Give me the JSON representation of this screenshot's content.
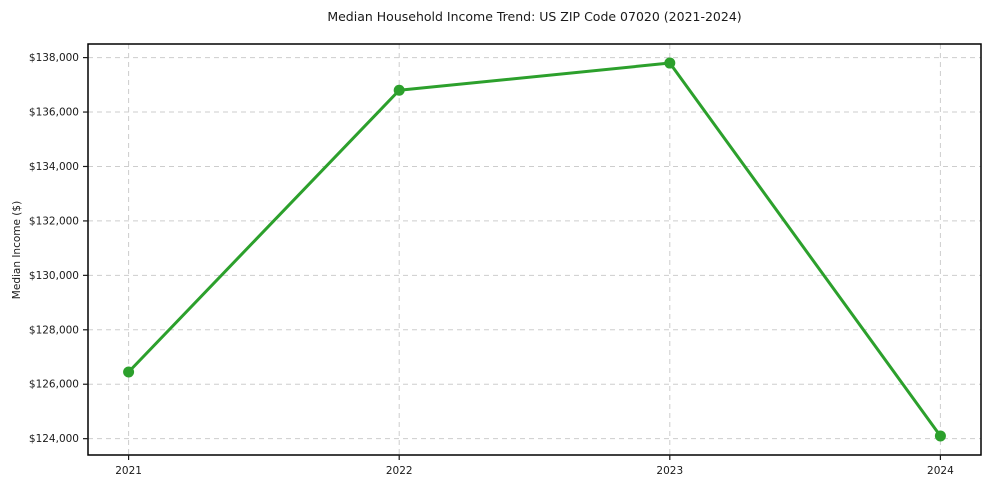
{
  "figure": {
    "title": "Median Household Income Trend: US ZIP Code 07020 (2021-2024)",
    "background_color": "#ffffff"
  },
  "chart_data": {
    "type": "line",
    "title": "Median Household Income Trend: US ZIP Code 07020 (2021-2024)",
    "xlabel": "",
    "ylabel": "Median Income ($)",
    "x": [
      2021,
      2022,
      2023,
      2024
    ],
    "series": [
      {
        "values": [
          126450,
          136800,
          137800,
          124100
        ],
        "color": "#2ca02c",
        "line_width": 3,
        "marker": "circle",
        "marker_size": 5.5
      }
    ],
    "xticks": {
      "values": [
        2021,
        2022,
        2023,
        2024
      ],
      "labels": [
        "2021",
        "2022",
        "2023",
        "2024"
      ]
    },
    "yticks": {
      "values": [
        124000,
        126000,
        128000,
        130000,
        132000,
        134000,
        136000,
        138000
      ],
      "labels": [
        "$124,000",
        "$126,000",
        "$128,000",
        "$130,000",
        "$132,000",
        "$134,000",
        "$136,000",
        "$138,000"
      ]
    },
    "xlim": [
      2020.85,
      2024.15
    ],
    "ylim": [
      123400,
      138500
    ],
    "grid": {
      "show": true,
      "style": "dashed",
      "color": "#cdcdcd"
    },
    "legend": {
      "show": false
    },
    "axes": {
      "spine_color": "#000000",
      "tick_color": "#1a1a1a",
      "tick_label_color": "#1a1a1a"
    }
  }
}
